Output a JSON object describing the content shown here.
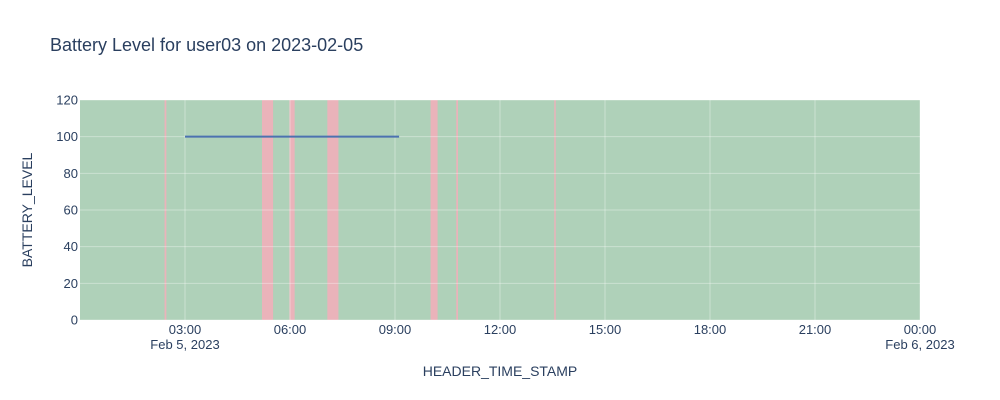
{
  "chart_data": {
    "type": "line",
    "title": "Battery Level for user03 on 2023-02-05",
    "xlabel": "HEADER_TIME_STAMP",
    "ylabel": "BATTERY_LEVEL",
    "xlim": [
      "2023-02-05 00:00",
      "2023-02-06 00:00"
    ],
    "ylim": [
      0,
      120
    ],
    "y_ticks": [
      0,
      20,
      40,
      60,
      80,
      100,
      120
    ],
    "x_ticks": [
      {
        "time": "2023-02-05 03:00",
        "label": "03:00",
        "sublabel": "Feb 5, 2023"
      },
      {
        "time": "2023-02-05 06:00",
        "label": "06:00",
        "sublabel": ""
      },
      {
        "time": "2023-02-05 09:00",
        "label": "09:00",
        "sublabel": ""
      },
      {
        "time": "2023-02-05 12:00",
        "label": "12:00",
        "sublabel": ""
      },
      {
        "time": "2023-02-05 15:00",
        "label": "15:00",
        "sublabel": ""
      },
      {
        "time": "2023-02-05 18:00",
        "label": "18:00",
        "sublabel": ""
      },
      {
        "time": "2023-02-05 21:00",
        "label": "21:00",
        "sublabel": ""
      },
      {
        "time": "2023-02-06 00:00",
        "label": "00:00",
        "sublabel": "Feb 6, 2023"
      }
    ],
    "grid": true,
    "series": [
      {
        "color": "#4c72b0",
        "x": [
          "2023-02-05 03:00",
          "2023-02-05 09:07"
        ],
        "y": [
          100,
          100
        ]
      }
    ],
    "background_color": "#afd1b9",
    "highlight_color": "#eab3ba",
    "highlight_bands": [
      {
        "start": "2023-02-05 02:25",
        "end": "2023-02-05 02:28"
      },
      {
        "start": "2023-02-05 05:12",
        "end": "2023-02-05 05:31"
      },
      {
        "start": "2023-02-05 05:59",
        "end": "2023-02-05 06:08"
      },
      {
        "start": "2023-02-05 07:04",
        "end": "2023-02-05 07:23"
      },
      {
        "start": "2023-02-05 10:01",
        "end": "2023-02-05 10:13"
      },
      {
        "start": "2023-02-05 10:45",
        "end": "2023-02-05 10:48"
      },
      {
        "start": "2023-02-05 13:33",
        "end": "2023-02-05 13:35"
      }
    ]
  }
}
